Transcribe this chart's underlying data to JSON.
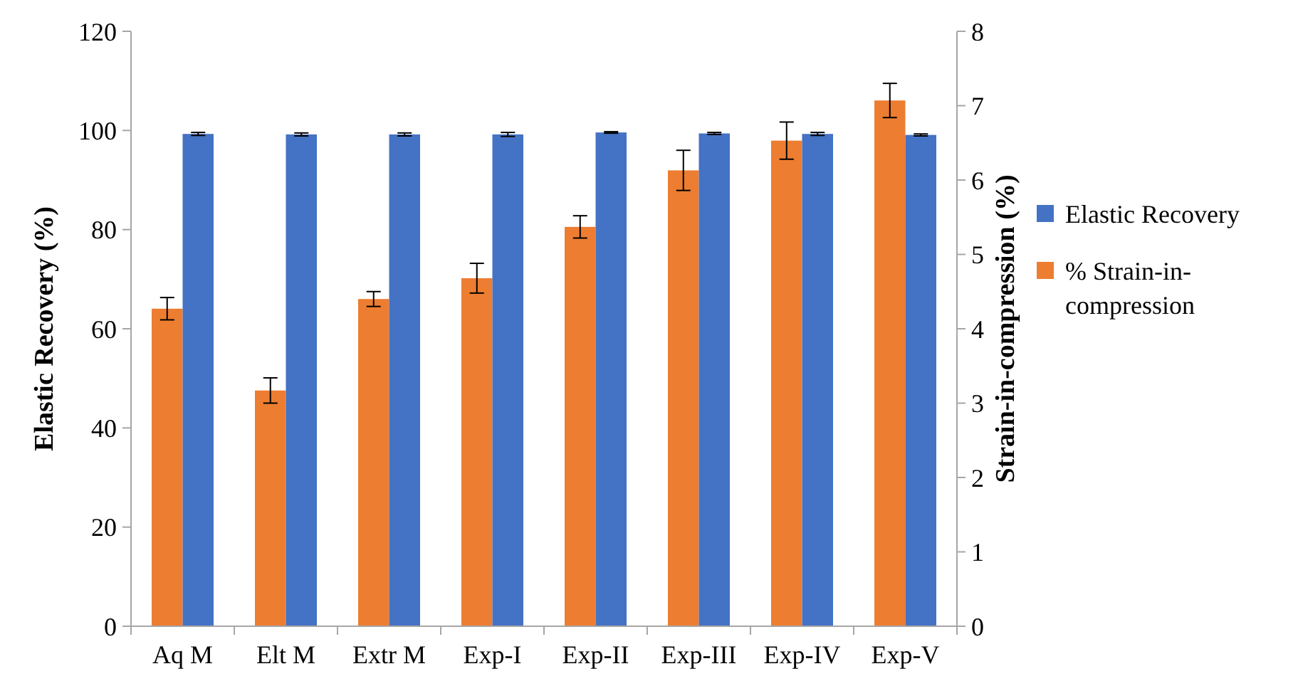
{
  "chart_data": {
    "type": "bar",
    "categories": [
      "Aq M",
      "Elt M",
      "Extr M",
      "Exp-I",
      "Exp-II",
      "Exp-III",
      "Exp-IV",
      "Exp-V"
    ],
    "ylabel": "Elastic Recovery (%)",
    "y2label": "Strain-in-compression (%)",
    "ylim": [
      0,
      120
    ],
    "yticks": [
      0,
      20,
      40,
      60,
      80,
      100,
      120
    ],
    "y2lim": [
      0,
      8
    ],
    "y2ticks": [
      0,
      1,
      2,
      3,
      4,
      5,
      6,
      7,
      8
    ],
    "grid": false,
    "legend": "right",
    "series": [
      {
        "name": "% Strain-in-compression",
        "color": "#ed7d31",
        "axis": "y2",
        "values": [
          4.27,
          3.17,
          4.4,
          4.68,
          5.37,
          6.13,
          6.53,
          7.07
        ],
        "errors": [
          0.15,
          0.17,
          0.1,
          0.2,
          0.15,
          0.27,
          0.25,
          0.23
        ]
      },
      {
        "name": "Elastic Recovery",
        "color": "#4472c4",
        "axis": "y",
        "values": [
          99.3,
          99.2,
          99.2,
          99.2,
          99.6,
          99.4,
          99.3,
          99.1
        ],
        "errors": [
          0.3,
          0.3,
          0.3,
          0.4,
          0.15,
          0.2,
          0.3,
          0.2
        ]
      }
    ]
  }
}
